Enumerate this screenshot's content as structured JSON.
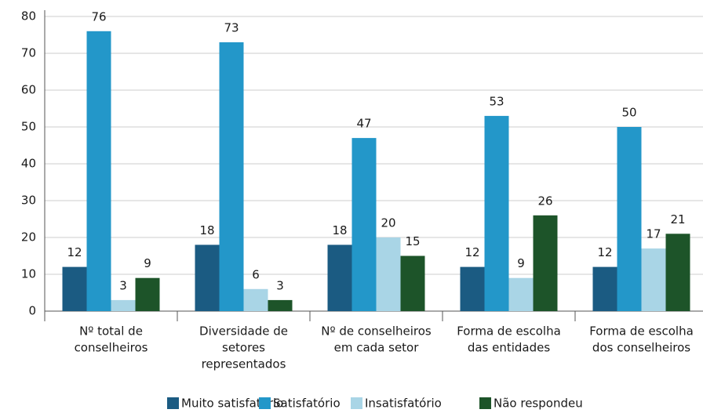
{
  "chart_data": {
    "type": "bar",
    "categories": [
      [
        "Nº total de",
        "conselheiros"
      ],
      [
        "Diversidade de",
        "setores",
        "representados"
      ],
      [
        "Nº de conselheiros",
        "em cada setor"
      ],
      [
        "Forma de escolha",
        "das entidades"
      ],
      [
        "Forma de escolha",
        "dos conselheiros"
      ]
    ],
    "series": [
      {
        "name": "Muito satisfatório",
        "color": "#1b5b82",
        "values": [
          12,
          18,
          18,
          12,
          12
        ]
      },
      {
        "name": "Satisfatório",
        "color": "#2397c9",
        "values": [
          76,
          73,
          47,
          53,
          50
        ]
      },
      {
        "name": "Insatisfatório",
        "color": "#a9d5e6",
        "values": [
          3,
          6,
          20,
          9,
          17
        ]
      },
      {
        "name": "Não respondeu",
        "color": "#1d5429",
        "values": [
          9,
          3,
          15,
          26,
          21
        ]
      }
    ],
    "ylim": [
      0,
      80
    ],
    "yticks": [
      0,
      10,
      20,
      30,
      40,
      50,
      60,
      70,
      80
    ],
    "grid": true,
    "legend": "bottom"
  }
}
